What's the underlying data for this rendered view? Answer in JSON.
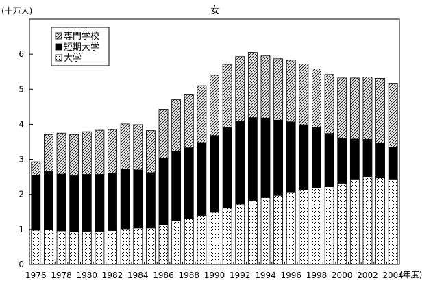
{
  "chart_data": {
    "type": "bar",
    "stacked": true,
    "title": "女",
    "ylabel": "(十万人)",
    "xunit": "(年度)",
    "ylim": [
      0,
      7
    ],
    "yticks": [
      0,
      1,
      2,
      3,
      4,
      5,
      6
    ],
    "categories": [
      "1976",
      "1977",
      "1978",
      "1979",
      "1980",
      "1981",
      "1982",
      "1983",
      "1984",
      "1985",
      "1986",
      "1987",
      "1988",
      "1989",
      "1990",
      "1991",
      "1992",
      "1993",
      "1994",
      "1995",
      "1996",
      "1997",
      "1998",
      "1999",
      "2000",
      "2001",
      "2002",
      "2003",
      "2004"
    ],
    "xtick_labels": [
      "1976",
      "1978",
      "1980",
      "1982",
      "1984",
      "1986",
      "1988",
      "1990",
      "1992",
      "1994",
      "1996",
      "1998",
      "2000",
      "2002",
      "2004"
    ],
    "legend_position": "top-left",
    "series": [
      {
        "name": "大学",
        "pattern": "dots",
        "values": [
          0.98,
          0.99,
          0.96,
          0.93,
          0.95,
          0.95,
          0.97,
          1.02,
          1.04,
          1.04,
          1.14,
          1.24,
          1.32,
          1.4,
          1.49,
          1.61,
          1.72,
          1.83,
          1.91,
          1.97,
          2.07,
          2.13,
          2.18,
          2.22,
          2.32,
          2.42,
          2.49,
          2.47,
          2.42
        ]
      },
      {
        "name": "短期大学",
        "pattern": "solid",
        "values": [
          1.57,
          1.66,
          1.62,
          1.6,
          1.62,
          1.62,
          1.63,
          1.69,
          1.66,
          1.58,
          1.89,
          1.99,
          2.01,
          2.08,
          2.19,
          2.3,
          2.36,
          2.36,
          2.27,
          2.15,
          2.0,
          1.86,
          1.73,
          1.52,
          1.28,
          1.16,
          1.08,
          1.0,
          0.93
        ]
      },
      {
        "name": "専門学校",
        "pattern": "hatch",
        "values": [
          0.38,
          1.06,
          1.17,
          1.18,
          1.22,
          1.26,
          1.25,
          1.3,
          1.29,
          1.2,
          1.4,
          1.47,
          1.53,
          1.62,
          1.72,
          1.8,
          1.85,
          1.86,
          1.77,
          1.75,
          1.76,
          1.73,
          1.67,
          1.68,
          1.72,
          1.74,
          1.78,
          1.84,
          1.82
        ]
      }
    ],
    "colors": {
      "bar_edge": "#000000",
      "solid_fill": "#000000",
      "background": "#ffffff"
    }
  }
}
